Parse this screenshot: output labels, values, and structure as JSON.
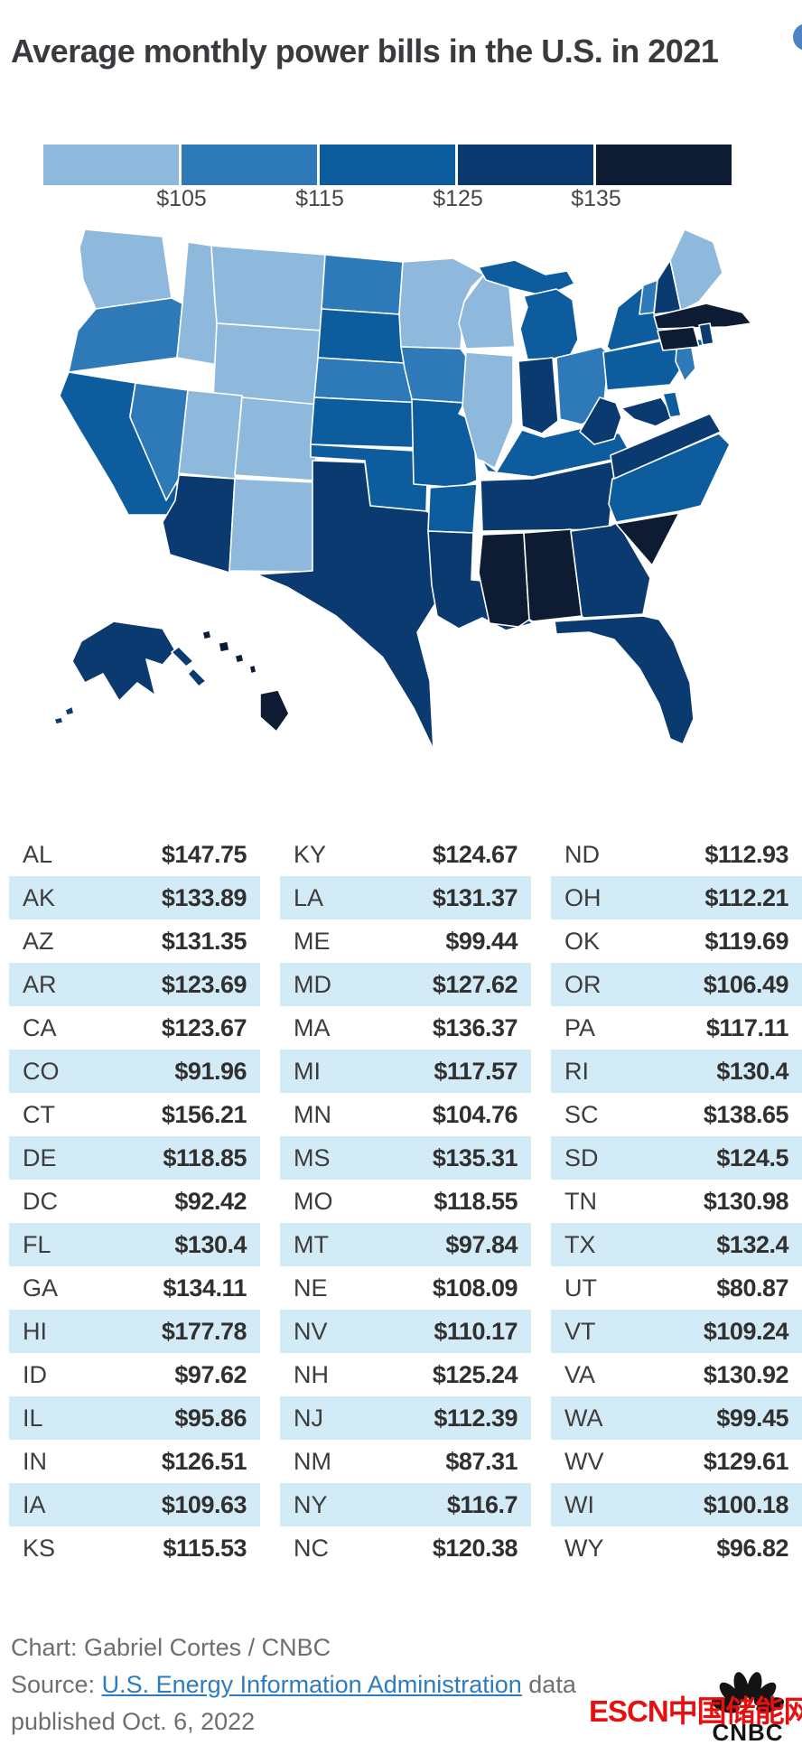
{
  "title": "Average monthly power bills in the U.S. in 2021",
  "info_button": {
    "color": "#4d82c4"
  },
  "legend": {
    "labels": [
      "$105",
      "$115",
      "$125",
      "$135"
    ],
    "thresholds": [
      105,
      115,
      125,
      135
    ],
    "colors": [
      "#8fb9dc",
      "#2e7ab9",
      "#0d5c9e",
      "#0a3a70",
      "#0d1c33"
    ]
  },
  "chart_data": {
    "type": "choropleth_map",
    "title": "Average monthly power bills in the U.S. in 2021",
    "unit": "USD per month",
    "legend_bins": {
      "thresholds": [
        105,
        115,
        125,
        135
      ],
      "colors": [
        "#8fb9dc",
        "#2e7ab9",
        "#0d5c9e",
        "#0a3a70",
        "#0d1c33"
      ]
    },
    "states": [
      {
        "abbr": "AL",
        "value": 147.75,
        "display": "$147.75"
      },
      {
        "abbr": "AK",
        "value": 133.89,
        "display": "$133.89"
      },
      {
        "abbr": "AZ",
        "value": 131.35,
        "display": "$131.35"
      },
      {
        "abbr": "AR",
        "value": 123.69,
        "display": "$123.69"
      },
      {
        "abbr": "CA",
        "value": 123.67,
        "display": "$123.67"
      },
      {
        "abbr": "CO",
        "value": 91.96,
        "display": "$91.96"
      },
      {
        "abbr": "CT",
        "value": 156.21,
        "display": "$156.21"
      },
      {
        "abbr": "DE",
        "value": 118.85,
        "display": "$118.85"
      },
      {
        "abbr": "DC",
        "value": 92.42,
        "display": "$92.42"
      },
      {
        "abbr": "FL",
        "value": 130.4,
        "display": "$130.4"
      },
      {
        "abbr": "GA",
        "value": 134.11,
        "display": "$134.11"
      },
      {
        "abbr": "HI",
        "value": 177.78,
        "display": "$177.78"
      },
      {
        "abbr": "ID",
        "value": 97.62,
        "display": "$97.62"
      },
      {
        "abbr": "IL",
        "value": 95.86,
        "display": "$95.86"
      },
      {
        "abbr": "IN",
        "value": 126.51,
        "display": "$126.51"
      },
      {
        "abbr": "IA",
        "value": 109.63,
        "display": "$109.63"
      },
      {
        "abbr": "KS",
        "value": 115.53,
        "display": "$115.53"
      },
      {
        "abbr": "KY",
        "value": 124.67,
        "display": "$124.67"
      },
      {
        "abbr": "LA",
        "value": 131.37,
        "display": "$131.37"
      },
      {
        "abbr": "ME",
        "value": 99.44,
        "display": "$99.44"
      },
      {
        "abbr": "MD",
        "value": 127.62,
        "display": "$127.62"
      },
      {
        "abbr": "MA",
        "value": 136.37,
        "display": "$136.37"
      },
      {
        "abbr": "MI",
        "value": 117.57,
        "display": "$117.57"
      },
      {
        "abbr": "MN",
        "value": 104.76,
        "display": "$104.76"
      },
      {
        "abbr": "MS",
        "value": 135.31,
        "display": "$135.31"
      },
      {
        "abbr": "MO",
        "value": 118.55,
        "display": "$118.55"
      },
      {
        "abbr": "MT",
        "value": 97.84,
        "display": "$97.84"
      },
      {
        "abbr": "NE",
        "value": 108.09,
        "display": "$108.09"
      },
      {
        "abbr": "NV",
        "value": 110.17,
        "display": "$110.17"
      },
      {
        "abbr": "NH",
        "value": 125.24,
        "display": "$125.24"
      },
      {
        "abbr": "NJ",
        "value": 112.39,
        "display": "$112.39"
      },
      {
        "abbr": "NM",
        "value": 87.31,
        "display": "$87.31"
      },
      {
        "abbr": "NY",
        "value": 116.7,
        "display": "$116.7"
      },
      {
        "abbr": "NC",
        "value": 120.38,
        "display": "$120.38"
      },
      {
        "abbr": "ND",
        "value": 112.93,
        "display": "$112.93"
      },
      {
        "abbr": "OH",
        "value": 112.21,
        "display": "$112.21"
      },
      {
        "abbr": "OK",
        "value": 119.69,
        "display": "$119.69"
      },
      {
        "abbr": "OR",
        "value": 106.49,
        "display": "$106.49"
      },
      {
        "abbr": "PA",
        "value": 117.11,
        "display": "$117.11"
      },
      {
        "abbr": "RI",
        "value": 130.4,
        "display": "$130.4"
      },
      {
        "abbr": "SC",
        "value": 138.65,
        "display": "$138.65"
      },
      {
        "abbr": "SD",
        "value": 124.5,
        "display": "$124.5"
      },
      {
        "abbr": "TN",
        "value": 130.98,
        "display": "$130.98"
      },
      {
        "abbr": "TX",
        "value": 132.4,
        "display": "$132.4"
      },
      {
        "abbr": "UT",
        "value": 80.87,
        "display": "$80.87"
      },
      {
        "abbr": "VT",
        "value": 109.24,
        "display": "$109.24"
      },
      {
        "abbr": "VA",
        "value": 130.92,
        "display": "$130.92"
      },
      {
        "abbr": "WA",
        "value": 99.45,
        "display": "$99.45"
      },
      {
        "abbr": "WV",
        "value": 129.61,
        "display": "$129.61"
      },
      {
        "abbr": "WI",
        "value": 100.18,
        "display": "$100.18"
      },
      {
        "abbr": "WY",
        "value": 96.82,
        "display": "$96.82"
      }
    ]
  },
  "table": {
    "columns": 3,
    "rows_per_column": 17,
    "order": "column-major",
    "stripe_color": "#d2ebf7"
  },
  "footer": {
    "credit": "Chart: Gabriel Cortes / CNBC",
    "source_prefix": "Source: ",
    "source_link": "U.S. Energy Information Administration",
    "source_after_link": " data",
    "source_line2": "published Oct. 6, 2022",
    "logo_text": "CNBC",
    "watermark": "ESCN中国储能网",
    "watermark_color": "#e8100e"
  }
}
